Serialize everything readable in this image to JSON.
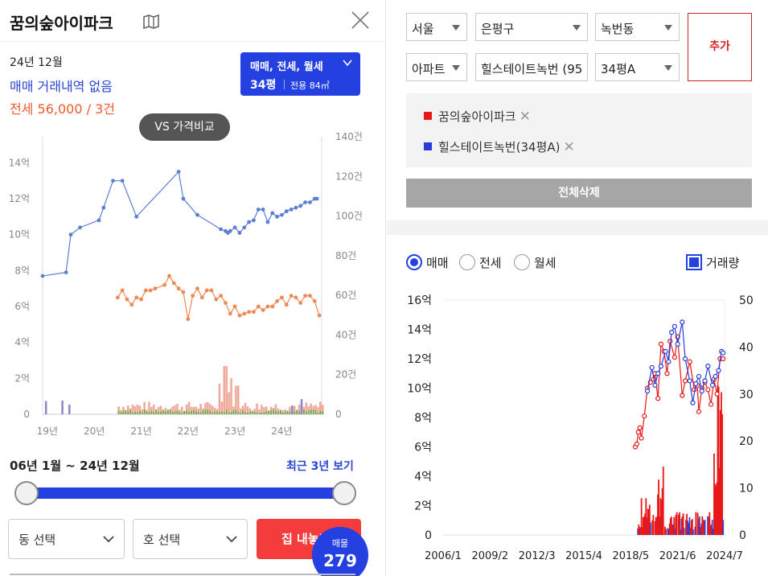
{
  "left": {
    "title": "꿈의숲아이파크",
    "period": "24년 12월",
    "sale_summary": "매매 거래내역 없음",
    "jeonse_summary": "전세 56,000 / 3건",
    "type_selector": {
      "label": "매매, 전세, 월세",
      "size": "34평",
      "area": "전용 84㎡"
    },
    "vs_button": "VS 가격비교",
    "range_text": "06년 1월 ~ 24년 12월",
    "recent_link": "최근 3년 보기",
    "slider": {
      "start": 0.0,
      "end": 1.0
    },
    "dong_select": "동 선택",
    "ho_select": "호 선택",
    "house_button": "집 내놓기",
    "listing_badge": {
      "label": "매물",
      "count": "279"
    },
    "icons": {
      "map": "map-icon",
      "close": "close-icon",
      "chevron": "chevron-down-icon"
    },
    "colors": {
      "sale_line": "#5b7fd3",
      "jeonse_line": "#ee8a55",
      "accent": "#2540e0",
      "red": "#f43c3c"
    },
    "chart_data": {
      "type": "line",
      "x_ticks": [
        "19년",
        "20년",
        "21년",
        "22년",
        "23년",
        "24년"
      ],
      "y_left_ticks": [
        "0",
        "2억",
        "4억",
        "6억",
        "8억",
        "10억",
        "12억",
        "14억"
      ],
      "y_right_ticks": [
        "0",
        "20건",
        "40건",
        "60건",
        "80건",
        "100건",
        "120건",
        "140건"
      ],
      "ylim_left": [
        0,
        15
      ],
      "ylim_right": [
        0,
        140
      ],
      "x_range": [
        2018.9,
        2024.85
      ],
      "series": [
        {
          "key": "sale",
          "x": [
            2018.9,
            2019.4,
            2019.5,
            2019.7,
            2020.1,
            2020.2,
            2020.4,
            2020.6,
            2020.9,
            2021.8,
            2021.9,
            2022.2,
            2022.7,
            2022.8,
            2022.85,
            2022.9,
            2023.0,
            2023.1,
            2023.2,
            2023.3,
            2023.4,
            2023.5,
            2023.6,
            2023.7,
            2023.8,
            2023.9,
            2024.0,
            2024.1,
            2024.2,
            2024.3,
            2024.4,
            2024.5,
            2024.6,
            2024.7,
            2024.75
          ],
          "values": [
            7.7,
            7.9,
            10.0,
            10.4,
            10.8,
            11.5,
            13.0,
            13.0,
            11.0,
            13.5,
            12.0,
            11.1,
            10.3,
            10.2,
            10.1,
            10.2,
            10.4,
            10.1,
            10.4,
            10.7,
            10.8,
            11.4,
            11.4,
            10.7,
            11.2,
            11.0,
            11.1,
            11.3,
            11.4,
            11.5,
            11.6,
            11.8,
            11.8,
            12.0,
            12.0
          ]
        },
        {
          "key": "jeonse",
          "x": [
            2020.5,
            2020.6,
            2020.7,
            2020.8,
            2020.9,
            2021.0,
            2021.1,
            2021.2,
            2021.3,
            2021.5,
            2021.6,
            2021.7,
            2021.8,
            2021.9,
            2022.0,
            2022.1,
            2022.2,
            2022.3,
            2022.4,
            2022.5,
            2022.6,
            2022.7,
            2022.8,
            2022.9,
            2023.0,
            2023.1,
            2023.2,
            2023.3,
            2023.4,
            2023.5,
            2023.6,
            2023.7,
            2023.8,
            2023.9,
            2024.0,
            2024.1,
            2024.2,
            2024.3,
            2024.4,
            2024.5,
            2024.6,
            2024.7,
            2024.8
          ],
          "values": [
            6.5,
            6.9,
            6.4,
            6.1,
            6.5,
            6.4,
            6.9,
            6.9,
            7.0,
            7.2,
            7.7,
            7.3,
            7.0,
            6.8,
            5.3,
            6.6,
            7.0,
            6.5,
            6.9,
            6.9,
            6.4,
            6.6,
            6.2,
            5.6,
            6.0,
            5.5,
            5.6,
            5.7,
            5.7,
            6.0,
            5.8,
            6.0,
            6.0,
            6.3,
            6.5,
            6.1,
            6.6,
            6.5,
            6.2,
            6.6,
            6.6,
            6.3,
            5.5
          ]
        }
      ]
    }
  },
  "right": {
    "selects": {
      "city": "서울",
      "gu": "은평구",
      "dong": "녹번동",
      "kind": "아파트",
      "apt": "힐스테이트녹번 (95",
      "size": "34평A"
    },
    "add_button": "추가",
    "compare_items": [
      {
        "name": "꿈의숲아이파크",
        "color": "#e81818"
      },
      {
        "name": "힐스테이트녹번(34평A)",
        "color": "#2a3cd8"
      }
    ],
    "remove_glyph": "✕",
    "delete_all": "전체삭제",
    "radios": {
      "sale": "매매",
      "jeonse": "전세",
      "wolse": "월세",
      "selected": "sale"
    },
    "volume_label": "거래량",
    "colors": {
      "red": "#e81818",
      "blue": "#2a3cd8"
    },
    "chart_data": {
      "type": "line",
      "x_ticks": [
        "2006/1",
        "2009/2",
        "2012/3",
        "2015/4",
        "2018/5",
        "2021/6",
        "2024/7"
      ],
      "y_left_ticks": [
        "0",
        "2억",
        "4억",
        "6억",
        "8억",
        "10억",
        "12억",
        "14억",
        "16억"
      ],
      "y_right_ticks": [
        "0",
        "10",
        "20",
        "30",
        "40",
        "50"
      ],
      "ylim_left": [
        0,
        16
      ],
      "ylim_right": [
        0,
        50
      ],
      "x_range": [
        2006.0,
        2024.6
      ],
      "series": [
        {
          "name": "꿈의숲아이파크",
          "x": [
            2018.7,
            2018.8,
            2018.9,
            2019.0,
            2019.1,
            2019.3,
            2019.5,
            2019.7,
            2019.9,
            2020.0,
            2020.2,
            2020.4,
            2020.6,
            2020.8,
            2021.0,
            2021.3,
            2021.5,
            2021.8,
            2022.0,
            2022.3,
            2022.6,
            2022.8,
            2022.9,
            2023.1,
            2023.3,
            2023.5,
            2023.7,
            2023.9,
            2024.1,
            2024.3,
            2024.5
          ],
          "values": [
            6.0,
            6.2,
            7.0,
            7.3,
            6.6,
            8.1,
            10.0,
            10.4,
            10.6,
            11.0,
            9.3,
            13.0,
            12.5,
            11.0,
            13.2,
            12.1,
            13.5,
            9.5,
            10.5,
            11.8,
            9.9,
            10.2,
            8.4,
            10.0,
            10.4,
            9.9,
            8.9,
            10.6,
            9.6,
            12.0,
            12.0
          ]
        },
        {
          "name": "힐스테이트녹번(34평A)",
          "x": [
            2019.5,
            2019.8,
            2020.0,
            2020.2,
            2020.4,
            2020.7,
            2020.9,
            2021.1,
            2021.3,
            2021.5,
            2021.8,
            2022.0,
            2022.3,
            2022.5,
            2022.7,
            2022.9,
            2023.1,
            2023.3,
            2023.5,
            2023.8,
            2024.0,
            2024.2,
            2024.4,
            2024.5
          ],
          "values": [
            9.8,
            11.4,
            10.2,
            11.0,
            11.5,
            12.5,
            11.8,
            13.8,
            14.2,
            13.0,
            14.5,
            12.0,
            10.5,
            9.0,
            10.3,
            10.8,
            9.8,
            10.5,
            11.5,
            10.2,
            10.8,
            11.2,
            12.5,
            12.4
          ]
        }
      ]
    }
  }
}
